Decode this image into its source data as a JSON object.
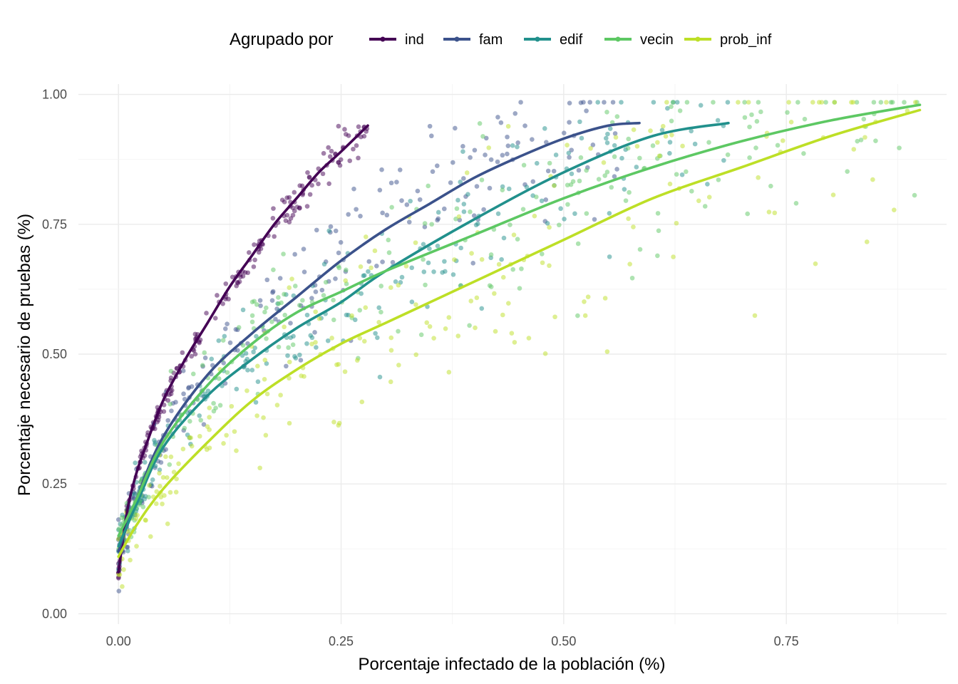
{
  "chart_data": {
    "type": "scatter",
    "title": "",
    "xlabel": "Porcentaje infectado de la población  (%)",
    "ylabel": "Porcentaje necesario de pruebas  (%)",
    "xlim": [
      -0.045,
      0.93
    ],
    "ylim": [
      -0.02,
      1.02
    ],
    "x_ticks": [
      0.0,
      0.25,
      0.5,
      0.75
    ],
    "x_tick_labels": [
      "0.00",
      "0.25",
      "0.50",
      "0.75"
    ],
    "y_ticks": [
      0.0,
      0.25,
      0.5,
      0.75,
      1.0
    ],
    "y_tick_labels": [
      "0.00",
      "0.25",
      "0.50",
      "0.75",
      "1.00"
    ],
    "grid": true,
    "legend": {
      "title": "Agrupado por",
      "position": "top"
    },
    "series": [
      {
        "name": "ind",
        "color": "#440154",
        "point_spread": 0.015,
        "curve": [
          [
            0.0,
            0.08
          ],
          [
            0.01,
            0.2
          ],
          [
            0.02,
            0.27
          ],
          [
            0.03,
            0.32
          ],
          [
            0.05,
            0.41
          ],
          [
            0.075,
            0.49
          ],
          [
            0.1,
            0.56
          ],
          [
            0.125,
            0.63
          ],
          [
            0.15,
            0.69
          ],
          [
            0.175,
            0.75
          ],
          [
            0.2,
            0.8
          ],
          [
            0.225,
            0.85
          ],
          [
            0.25,
            0.89
          ],
          [
            0.28,
            0.94
          ]
        ]
      },
      {
        "name": "fam",
        "color": "#3B528B",
        "point_spread": 0.045,
        "curve": [
          [
            0.0,
            0.12
          ],
          [
            0.02,
            0.22
          ],
          [
            0.05,
            0.34
          ],
          [
            0.1,
            0.46
          ],
          [
            0.15,
            0.54
          ],
          [
            0.2,
            0.61
          ],
          [
            0.25,
            0.68
          ],
          [
            0.3,
            0.74
          ],
          [
            0.35,
            0.79
          ],
          [
            0.4,
            0.84
          ],
          [
            0.45,
            0.88
          ],
          [
            0.5,
            0.915
          ],
          [
            0.55,
            0.94
          ],
          [
            0.585,
            0.945
          ]
        ]
      },
      {
        "name": "edif",
        "color": "#21908C",
        "point_spread": 0.05,
        "curve": [
          [
            0.0,
            0.13
          ],
          [
            0.02,
            0.21
          ],
          [
            0.05,
            0.32
          ],
          [
            0.1,
            0.42
          ],
          [
            0.15,
            0.49
          ],
          [
            0.2,
            0.55
          ],
          [
            0.25,
            0.6
          ],
          [
            0.3,
            0.66
          ],
          [
            0.4,
            0.76
          ],
          [
            0.5,
            0.85
          ],
          [
            0.6,
            0.92
          ],
          [
            0.685,
            0.945
          ]
        ]
      },
      {
        "name": "vecin",
        "color": "#5DC863",
        "point_spread": 0.055,
        "curve": [
          [
            0.0,
            0.15
          ],
          [
            0.02,
            0.22
          ],
          [
            0.05,
            0.33
          ],
          [
            0.1,
            0.44
          ],
          [
            0.15,
            0.52
          ],
          [
            0.2,
            0.58
          ],
          [
            0.25,
            0.62
          ],
          [
            0.3,
            0.66
          ],
          [
            0.4,
            0.73
          ],
          [
            0.5,
            0.8
          ],
          [
            0.6,
            0.86
          ],
          [
            0.7,
            0.91
          ],
          [
            0.8,
            0.95
          ],
          [
            0.9,
            0.98
          ]
        ]
      },
      {
        "name": "prob_inf",
        "color": "#BDDF26",
        "point_spread": 0.075,
        "curve": [
          [
            0.0,
            0.11
          ],
          [
            0.02,
            0.17
          ],
          [
            0.05,
            0.24
          ],
          [
            0.1,
            0.33
          ],
          [
            0.15,
            0.41
          ],
          [
            0.2,
            0.47
          ],
          [
            0.25,
            0.52
          ],
          [
            0.3,
            0.56
          ],
          [
            0.35,
            0.6
          ],
          [
            0.4,
            0.64
          ],
          [
            0.5,
            0.72
          ],
          [
            0.6,
            0.8
          ],
          [
            0.7,
            0.86
          ],
          [
            0.8,
            0.92
          ],
          [
            0.9,
            0.97
          ]
        ]
      }
    ]
  }
}
